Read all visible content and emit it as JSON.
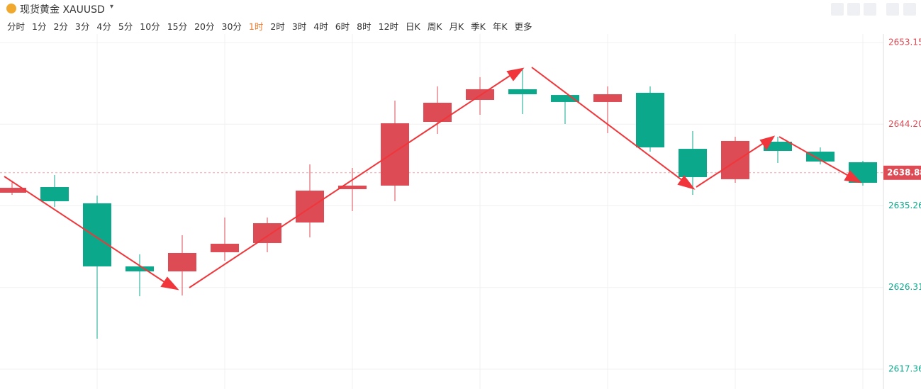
{
  "header": {
    "title": "现货黄金 XAUUSD",
    "intervals": [
      "分时",
      "1分",
      "2分",
      "3分",
      "4分",
      "5分",
      "10分",
      "15分",
      "20分",
      "30分",
      "1时",
      "2时",
      "3时",
      "4时",
      "6时",
      "8时",
      "12时",
      "日K",
      "周K",
      "月K",
      "季K",
      "年K",
      "更多"
    ]
  },
  "chart_data": {
    "type": "candlestick",
    "categories": [
      null,
      null,
      null,
      null,
      null,
      null,
      null,
      null,
      null,
      null,
      null,
      null,
      null,
      null,
      null,
      null,
      null,
      null,
      null,
      null,
      null
    ],
    "open": [
      2636.69,
      2637.31,
      2635.53,
      2628.62,
      2628.07,
      2630.17,
      2631.18,
      2633.43,
      2637.08,
      2637.47,
      2644.45,
      2646.86,
      2648.03,
      2647.4,
      2646.63,
      2647.64,
      2641.5,
      2638.17,
      2642.28,
      2641.19,
      2640.03
    ],
    "high": [
      2638.01,
      2638.63,
      2636.38,
      2629.94,
      2632.03,
      2633.97,
      2633.97,
      2639.8,
      2639.41,
      2646.78,
      2648.34,
      2649.35,
      2650.2,
      2647.4,
      2648.34,
      2648.34,
      2643.44,
      2642.82,
      2642.82,
      2641.66,
      2640.18
    ],
    "low": [
      2636.46,
      2635.14,
      2620.7,
      2625.35,
      2625.43,
      2629.24,
      2630.17,
      2631.8,
      2634.67,
      2635.76,
      2643.13,
      2645.23,
      2645.31,
      2644.22,
      2643.21,
      2641.19,
      2636.46,
      2637.78,
      2639.95,
      2639.8,
      2637.47
    ],
    "close": [
      2637.23,
      2635.76,
      2628.62,
      2628.07,
      2630.09,
      2631.1,
      2633.35,
      2636.92,
      2637.47,
      2644.3,
      2646.55,
      2648.03,
      2647.48,
      2646.63,
      2647.48,
      2641.66,
      2638.4,
      2642.36,
      2641.27,
      2640.11,
      2637.78
    ],
    "up_color": "#dd4b55",
    "down_color": "#0ba88b",
    "ylim": [
      2616.66,
      2654.08
    ],
    "yticks": [
      2617.36,
      2626.31,
      2635.26,
      {
        "value": 2644.2,
        "label": "2644.20"
      },
      2653.15
    ],
    "last_price": 2638.88,
    "grid": true
  }
}
